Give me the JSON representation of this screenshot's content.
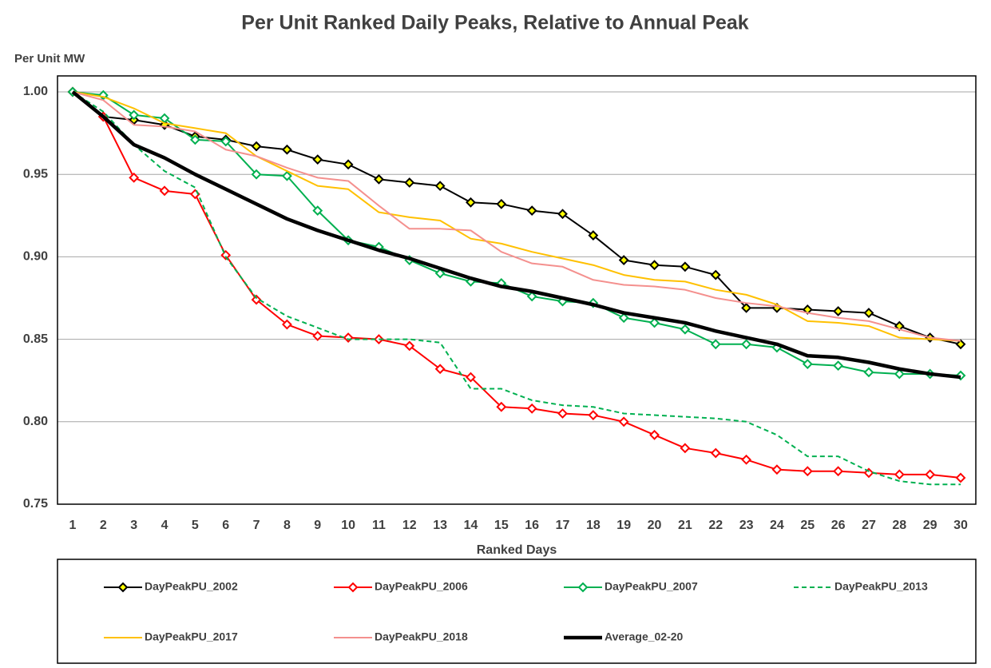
{
  "chart_data": {
    "type": "line",
    "title": "Per Unit Ranked Daily Peaks, Relative to Annual Peak",
    "y_label": "Per Unit MW",
    "x_label": "Ranked Days",
    "categories": [
      "1",
      "2",
      "3",
      "4",
      "5",
      "6",
      "7",
      "8",
      "9",
      "10",
      "11",
      "12",
      "13",
      "14",
      "15",
      "16",
      "17",
      "18",
      "19",
      "20",
      "21",
      "22",
      "23",
      "24",
      "25",
      "26",
      "27",
      "28",
      "29",
      "30"
    ],
    "ylim": [
      0.75,
      1.0
    ],
    "yticks": [
      {
        "value": 1.0,
        "label": "1.00"
      },
      0.95,
      {
        "value": 0.9,
        "label": "0.90"
      },
      0.85,
      {
        "value": 0.8,
        "label": "0.80"
      },
      0.75
    ],
    "grid": true,
    "legend": "bottom",
    "series": [
      {
        "name": "DayPeakPU_2002",
        "color": "#000000",
        "marker": "diamond",
        "marker_color": "#ffff00",
        "line_width": 2,
        "dash": false,
        "values": [
          1.0,
          0.985,
          0.983,
          0.98,
          0.973,
          0.971,
          0.967,
          0.965,
          0.959,
          0.956,
          0.947,
          0.945,
          0.943,
          0.933,
          0.932,
          0.928,
          0.926,
          0.913,
          0.898,
          0.895,
          0.894,
          0.889,
          0.869,
          0.869,
          0.868,
          0.867,
          0.866,
          0.858,
          0.851,
          0.847
        ]
      },
      {
        "name": "DayPeakPU_2006",
        "color": "#ff0000",
        "marker": "diamond",
        "marker_color": "#ffffff",
        "line_width": 2,
        "dash": false,
        "values": [
          1.0,
          0.985,
          0.948,
          0.94,
          0.938,
          0.901,
          0.874,
          0.859,
          0.852,
          0.851,
          0.85,
          0.846,
          0.832,
          0.827,
          0.809,
          0.808,
          0.805,
          0.804,
          0.8,
          0.792,
          0.784,
          0.781,
          0.777,
          0.771,
          0.77,
          0.77,
          0.769,
          0.768,
          0.768,
          0.766
        ]
      },
      {
        "name": "DayPeakPU_2007",
        "color": "#00b050",
        "marker": "diamond",
        "marker_color": "#ffffff",
        "line_width": 2,
        "dash": false,
        "values": [
          1.0,
          0.998,
          0.986,
          0.984,
          0.971,
          0.97,
          0.95,
          0.949,
          0.928,
          0.91,
          0.906,
          0.898,
          0.89,
          0.885,
          0.884,
          0.876,
          0.873,
          0.872,
          0.863,
          0.86,
          0.856,
          0.847,
          0.847,
          0.845,
          0.835,
          0.834,
          0.83,
          0.829,
          0.829,
          0.828
        ]
      },
      {
        "name": "DayPeakPU_2013",
        "color": "#00b050",
        "marker": "none",
        "line_width": 2,
        "dash": true,
        "values": [
          1.0,
          0.988,
          0.968,
          0.952,
          0.942,
          0.9,
          0.875,
          0.864,
          0.857,
          0.85,
          0.85,
          0.85,
          0.848,
          0.82,
          0.82,
          0.813,
          0.81,
          0.809,
          0.805,
          0.804,
          0.803,
          0.802,
          0.8,
          0.792,
          0.779,
          0.779,
          0.77,
          0.764,
          0.762,
          0.762
        ]
      },
      {
        "name": "DayPeakPU_2017",
        "color": "#ffc000",
        "marker": "none",
        "line_width": 2,
        "dash": false,
        "values": [
          1.0,
          0.997,
          0.99,
          0.981,
          0.978,
          0.975,
          0.961,
          0.952,
          0.943,
          0.941,
          0.927,
          0.924,
          0.922,
          0.911,
          0.908,
          0.903,
          0.899,
          0.895,
          0.889,
          0.886,
          0.885,
          0.88,
          0.877,
          0.871,
          0.861,
          0.86,
          0.858,
          0.851,
          0.85,
          0.849
        ]
      },
      {
        "name": "DayPeakPU_2018",
        "color": "#f4908e",
        "marker": "none",
        "line_width": 2,
        "dash": false,
        "values": [
          1.0,
          0.995,
          0.98,
          0.979,
          0.976,
          0.965,
          0.961,
          0.954,
          0.948,
          0.946,
          0.931,
          0.917,
          0.917,
          0.916,
          0.903,
          0.896,
          0.894,
          0.886,
          0.883,
          0.882,
          0.88,
          0.875,
          0.872,
          0.87,
          0.866,
          0.863,
          0.861,
          0.856,
          0.851,
          0.849
        ]
      },
      {
        "name": "Average_02-20",
        "color": "#000000",
        "marker": "none",
        "line_width": 4.5,
        "dash": false,
        "values": [
          1.0,
          0.985,
          0.968,
          0.96,
          0.95,
          0.941,
          0.932,
          0.923,
          0.916,
          0.91,
          0.904,
          0.899,
          0.893,
          0.887,
          0.882,
          0.879,
          0.875,
          0.871,
          0.866,
          0.863,
          0.86,
          0.855,
          0.851,
          0.847,
          0.84,
          0.839,
          0.836,
          0.832,
          0.829,
          0.827
        ]
      }
    ]
  }
}
